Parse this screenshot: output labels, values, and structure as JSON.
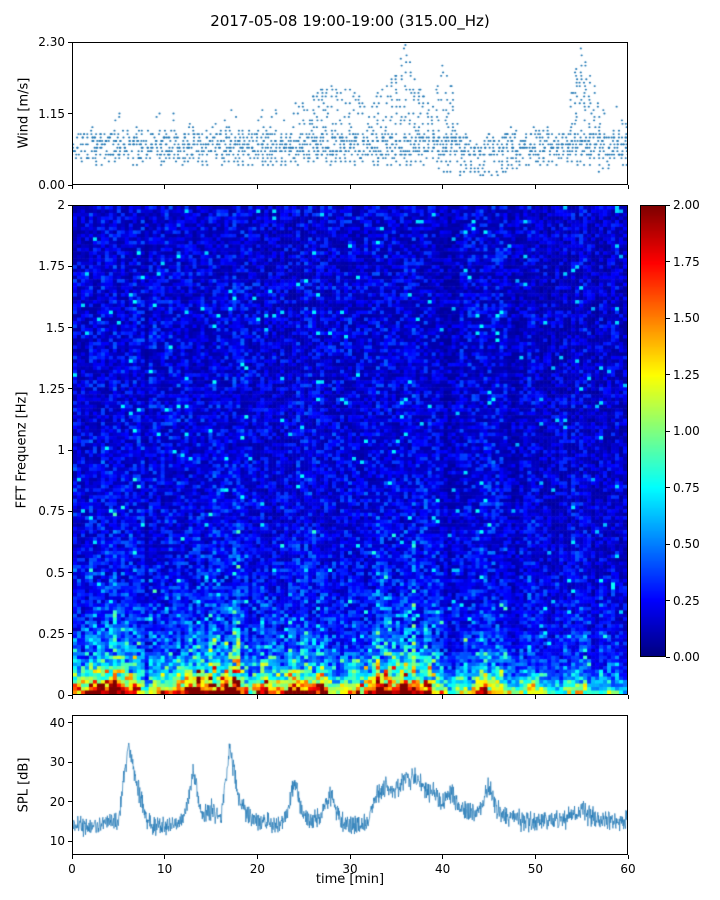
{
  "title": "2017-05-08 19:00-19:00 (315.00_Hz)",
  "colors": {
    "series": "#1f77b4",
    "axis": "#000000",
    "background": "#ffffff"
  },
  "chart_data": [
    {
      "type": "scatter",
      "name": "wind",
      "ylabel": "Wind [m/s]",
      "xlim": [
        0,
        60
      ],
      "ylim": [
        0,
        2.3
      ],
      "yticks": [
        0.0,
        1.15,
        2.3
      ],
      "ytick_labels": [
        "0.00",
        "1.15",
        "2.30"
      ],
      "xticks": [
        0,
        10,
        20,
        30,
        40,
        50,
        60
      ],
      "marker_color": "#1f77b4",
      "quantize_step": 0.0575,
      "max_by_minute": [
        0.9,
        0.85,
        0.95,
        1.0,
        1.1,
        1.2,
        1.0,
        0.95,
        1.1,
        1.2,
        1.3,
        1.25,
        1.1,
        1.0,
        1.05,
        1.0,
        1.1,
        1.2,
        1.15,
        1.1,
        1.3,
        1.25,
        1.2,
        1.15,
        1.3,
        1.35,
        1.45,
        1.55,
        1.6,
        1.5,
        1.55,
        1.45,
        1.3,
        1.5,
        1.6,
        1.8,
        2.3,
        1.7,
        1.45,
        1.3,
        1.95,
        1.6,
        0.9,
        0.7,
        0.6,
        0.8,
        0.7,
        0.9,
        1.0,
        0.9,
        1.05,
        0.95,
        1.0,
        1.1,
        1.5,
        2.25,
        1.8,
        1.4,
        1.2,
        1.3,
        1.1
      ],
      "min_by_minute": [
        0.35,
        0.3,
        0.32,
        0.3,
        0.33,
        0.3,
        0.32,
        0.3,
        0.35,
        0.3,
        0.32,
        0.3,
        0.3,
        0.32,
        0.3,
        0.33,
        0.3,
        0.32,
        0.3,
        0.3,
        0.32,
        0.3,
        0.33,
        0.3,
        0.32,
        0.3,
        0.3,
        0.32,
        0.3,
        0.33,
        0.3,
        0.3,
        0.32,
        0.3,
        0.25,
        0.3,
        0.3,
        0.32,
        0.3,
        0.3,
        0.2,
        0.15,
        0.1,
        0.1,
        0.12,
        0.1,
        0.12,
        0.15,
        0.25,
        0.3,
        0.3,
        0.32,
        0.3,
        0.3,
        0.28,
        0.3,
        0.2,
        0.2,
        0.25,
        0.3,
        0.3
      ],
      "seed": 7
    },
    {
      "type": "heatmap",
      "name": "spectrogram",
      "ylabel": "FFT Frequenz [Hz]",
      "xlim": [
        0,
        60
      ],
      "ylim": [
        0,
        2
      ],
      "yticks": [
        0,
        0.25,
        0.5,
        0.75,
        1,
        1.25,
        1.5,
        1.75,
        2
      ],
      "ytick_labels": [
        "0",
        "0.25",
        "0.5",
        "0.75",
        "1",
        "1.25",
        "1.5",
        "1.75",
        "2"
      ],
      "xticks": [
        0,
        10,
        20,
        30,
        40,
        50,
        60
      ],
      "colormap": "jet",
      "clim": [
        0,
        2
      ],
      "colorbar_ticks": [
        0,
        0.25,
        0.5,
        0.75,
        1.0,
        1.25,
        1.5,
        1.75,
        2.0
      ],
      "colorbar_tick_labels": [
        "0.00",
        "0.25",
        "0.50",
        "0.75",
        "1.00",
        "1.25",
        "1.50",
        "1.75",
        "2.00"
      ],
      "activity_by_minute": [
        0.7,
        0.6,
        0.75,
        0.9,
        0.85,
        0.9,
        0.8,
        0.6,
        0.25,
        0.5,
        0.6,
        0.55,
        0.7,
        0.9,
        0.75,
        0.85,
        0.7,
        0.95,
        0.85,
        0.3,
        0.5,
        0.8,
        0.6,
        0.55,
        0.85,
        0.6,
        0.65,
        0.9,
        0.35,
        0.45,
        0.6,
        0.5,
        0.55,
        0.9,
        0.95,
        0.8,
        0.9,
        0.7,
        0.75,
        0.6,
        0.3,
        0.25,
        0.4,
        0.35,
        0.7,
        0.6,
        0.5,
        0.35,
        0.3,
        0.35,
        0.45,
        0.3,
        0.25,
        0.3,
        0.35,
        0.4,
        0.3,
        0.25,
        0.3,
        0.25,
        0.2
      ],
      "seed": 13
    },
    {
      "type": "line",
      "name": "spl",
      "ylabel": "SPL [dB]",
      "xlabel": "time [min]",
      "xlim": [
        0,
        60
      ],
      "ylim": [
        6.5,
        42
      ],
      "yticks": [
        10,
        20,
        30,
        40
      ],
      "ytick_labels": [
        "10",
        "20",
        "30",
        "40"
      ],
      "xticks": [
        0,
        10,
        20,
        30,
        40,
        50,
        60
      ],
      "xtick_labels": [
        "0",
        "10",
        "20",
        "30",
        "40",
        "50",
        "60"
      ],
      "line_color": "#1f77b4",
      "mean_by_minute": [
        14,
        14,
        13.5,
        14,
        14.5,
        16,
        35,
        24,
        15,
        13.5,
        14,
        14,
        15,
        28,
        16,
        18,
        15,
        34,
        20,
        16,
        15,
        14.5,
        14,
        15,
        25,
        16,
        15,
        17,
        22,
        15,
        14,
        14,
        15,
        22,
        24,
        23,
        26,
        26,
        24,
        22,
        20,
        22,
        18,
        17,
        17,
        24,
        18,
        16,
        15.5,
        15,
        15,
        15.5,
        15,
        15,
        16,
        18,
        16,
        15.5,
        15,
        15,
        15
      ],
      "noise_db": 3.2,
      "seed": 21
    }
  ]
}
